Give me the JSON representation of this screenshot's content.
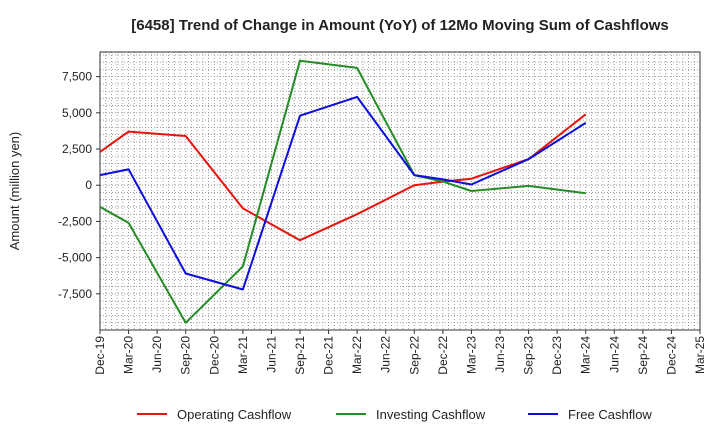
{
  "chart_data": {
    "type": "line",
    "title": "[6458]  Trend of Change in Amount (YoY) of 12Mo Moving Sum of Cashflows",
    "xlabel": "",
    "ylabel": "Amount (million yen)",
    "categories": [
      "Dec-19",
      "Mar-20",
      "Jun-20",
      "Sep-20",
      "Dec-20",
      "Mar-21",
      "Jun-21",
      "Sep-21",
      "Dec-21",
      "Mar-22",
      "Jun-22",
      "Sep-22",
      "Dec-22",
      "Mar-23",
      "Jun-23",
      "Sep-23",
      "Dec-23",
      "Mar-24",
      "Jun-24",
      "Sep-24",
      "Dec-24",
      "Mar-25"
    ],
    "yticks": [
      -7500,
      -5000,
      -2500,
      0,
      2500,
      5000,
      7500
    ],
    "ytick_labels": [
      "-7,500",
      "-5,000",
      "-2,500",
      "0",
      "2,500",
      "5,000",
      "7,500"
    ],
    "ylim": [
      -10000,
      9200
    ],
    "grid": true,
    "legend_position": "bottom",
    "series": [
      {
        "name": "Operating Cashflow",
        "color": "#e8140c",
        "values": [
          2300,
          3700,
          null,
          3400,
          null,
          -1600,
          null,
          -3800,
          null,
          -2000,
          null,
          0,
          250,
          450,
          null,
          1800,
          null,
          4900,
          null,
          null,
          null,
          null
        ]
      },
      {
        "name": "Investing Cashflow",
        "color": "#268c26",
        "values": [
          -1500,
          -2600,
          null,
          -9500,
          null,
          -5600,
          null,
          8600,
          null,
          8100,
          null,
          700,
          250,
          -400,
          null,
          -50,
          null,
          -550,
          null,
          null,
          null,
          null
        ]
      },
      {
        "name": "Free Cashflow",
        "color": "#0d0ddd",
        "values": [
          700,
          1100,
          null,
          -6100,
          null,
          -7200,
          null,
          4800,
          null,
          6100,
          null,
          700,
          400,
          50,
          null,
          1800,
          null,
          4300,
          null,
          null,
          null,
          null
        ]
      }
    ]
  }
}
